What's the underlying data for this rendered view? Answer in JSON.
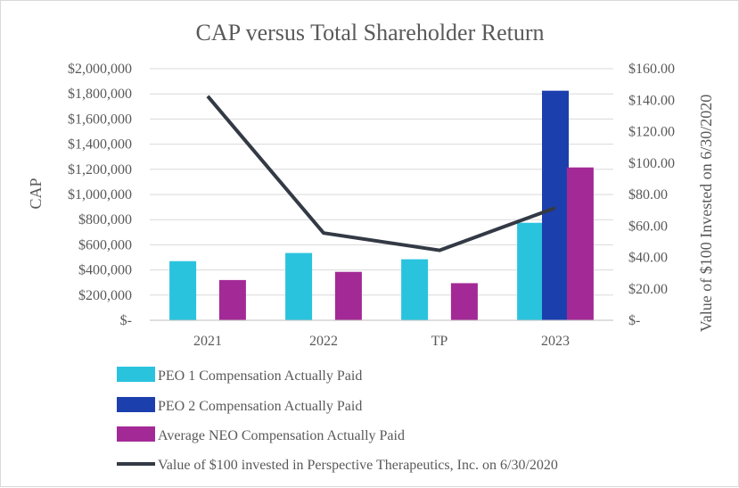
{
  "chart_data": {
    "type": "bar",
    "title": "CAP versus Total Shareholder Return",
    "categories": [
      "2021",
      "2022",
      "TP",
      "2023"
    ],
    "ylabel": "CAP",
    "y2label": "Value of $100 Invested on 6/30/2020",
    "ylim": [
      0,
      2000000
    ],
    "y2lim": [
      0,
      160
    ],
    "yticks": [
      "$-",
      "$200,000",
      "$400,000",
      "$600,000",
      "$800,000",
      "$1,000,000",
      "$1,200,000",
      "$1,400,000",
      "$1,600,000",
      "$1,800,000",
      "$2,000,000"
    ],
    "y2ticks": [
      "$-",
      "$20.00",
      "$40.00",
      "$60.00",
      "$80.00",
      "$100.00",
      "$120.00",
      "$140.00",
      "$160.00"
    ],
    "series": [
      {
        "name": "PEO 1 Compensation Actually Paid",
        "kind": "bar",
        "axis": "left",
        "color": "#2ac3de",
        "values": [
          470000,
          535000,
          485000,
          775000
        ]
      },
      {
        "name": "PEO 2 Compensation Actually Paid",
        "kind": "bar",
        "axis": "left",
        "color": "#1c3fae",
        "values": [
          null,
          null,
          null,
          1825000
        ]
      },
      {
        "name": "Average NEO Compensation Actually Paid",
        "kind": "bar",
        "axis": "left",
        "color": "#a32a96",
        "values": [
          320000,
          385000,
          295000,
          1215000
        ]
      },
      {
        "name": "Value of $100 invested in Perspective Therapeutics, Inc. on 6/30/2020",
        "kind": "line",
        "axis": "right",
        "color": "#333a45",
        "values": [
          142.5,
          55.5,
          44.5,
          71.5
        ]
      }
    ],
    "legend_position": "bottom"
  }
}
